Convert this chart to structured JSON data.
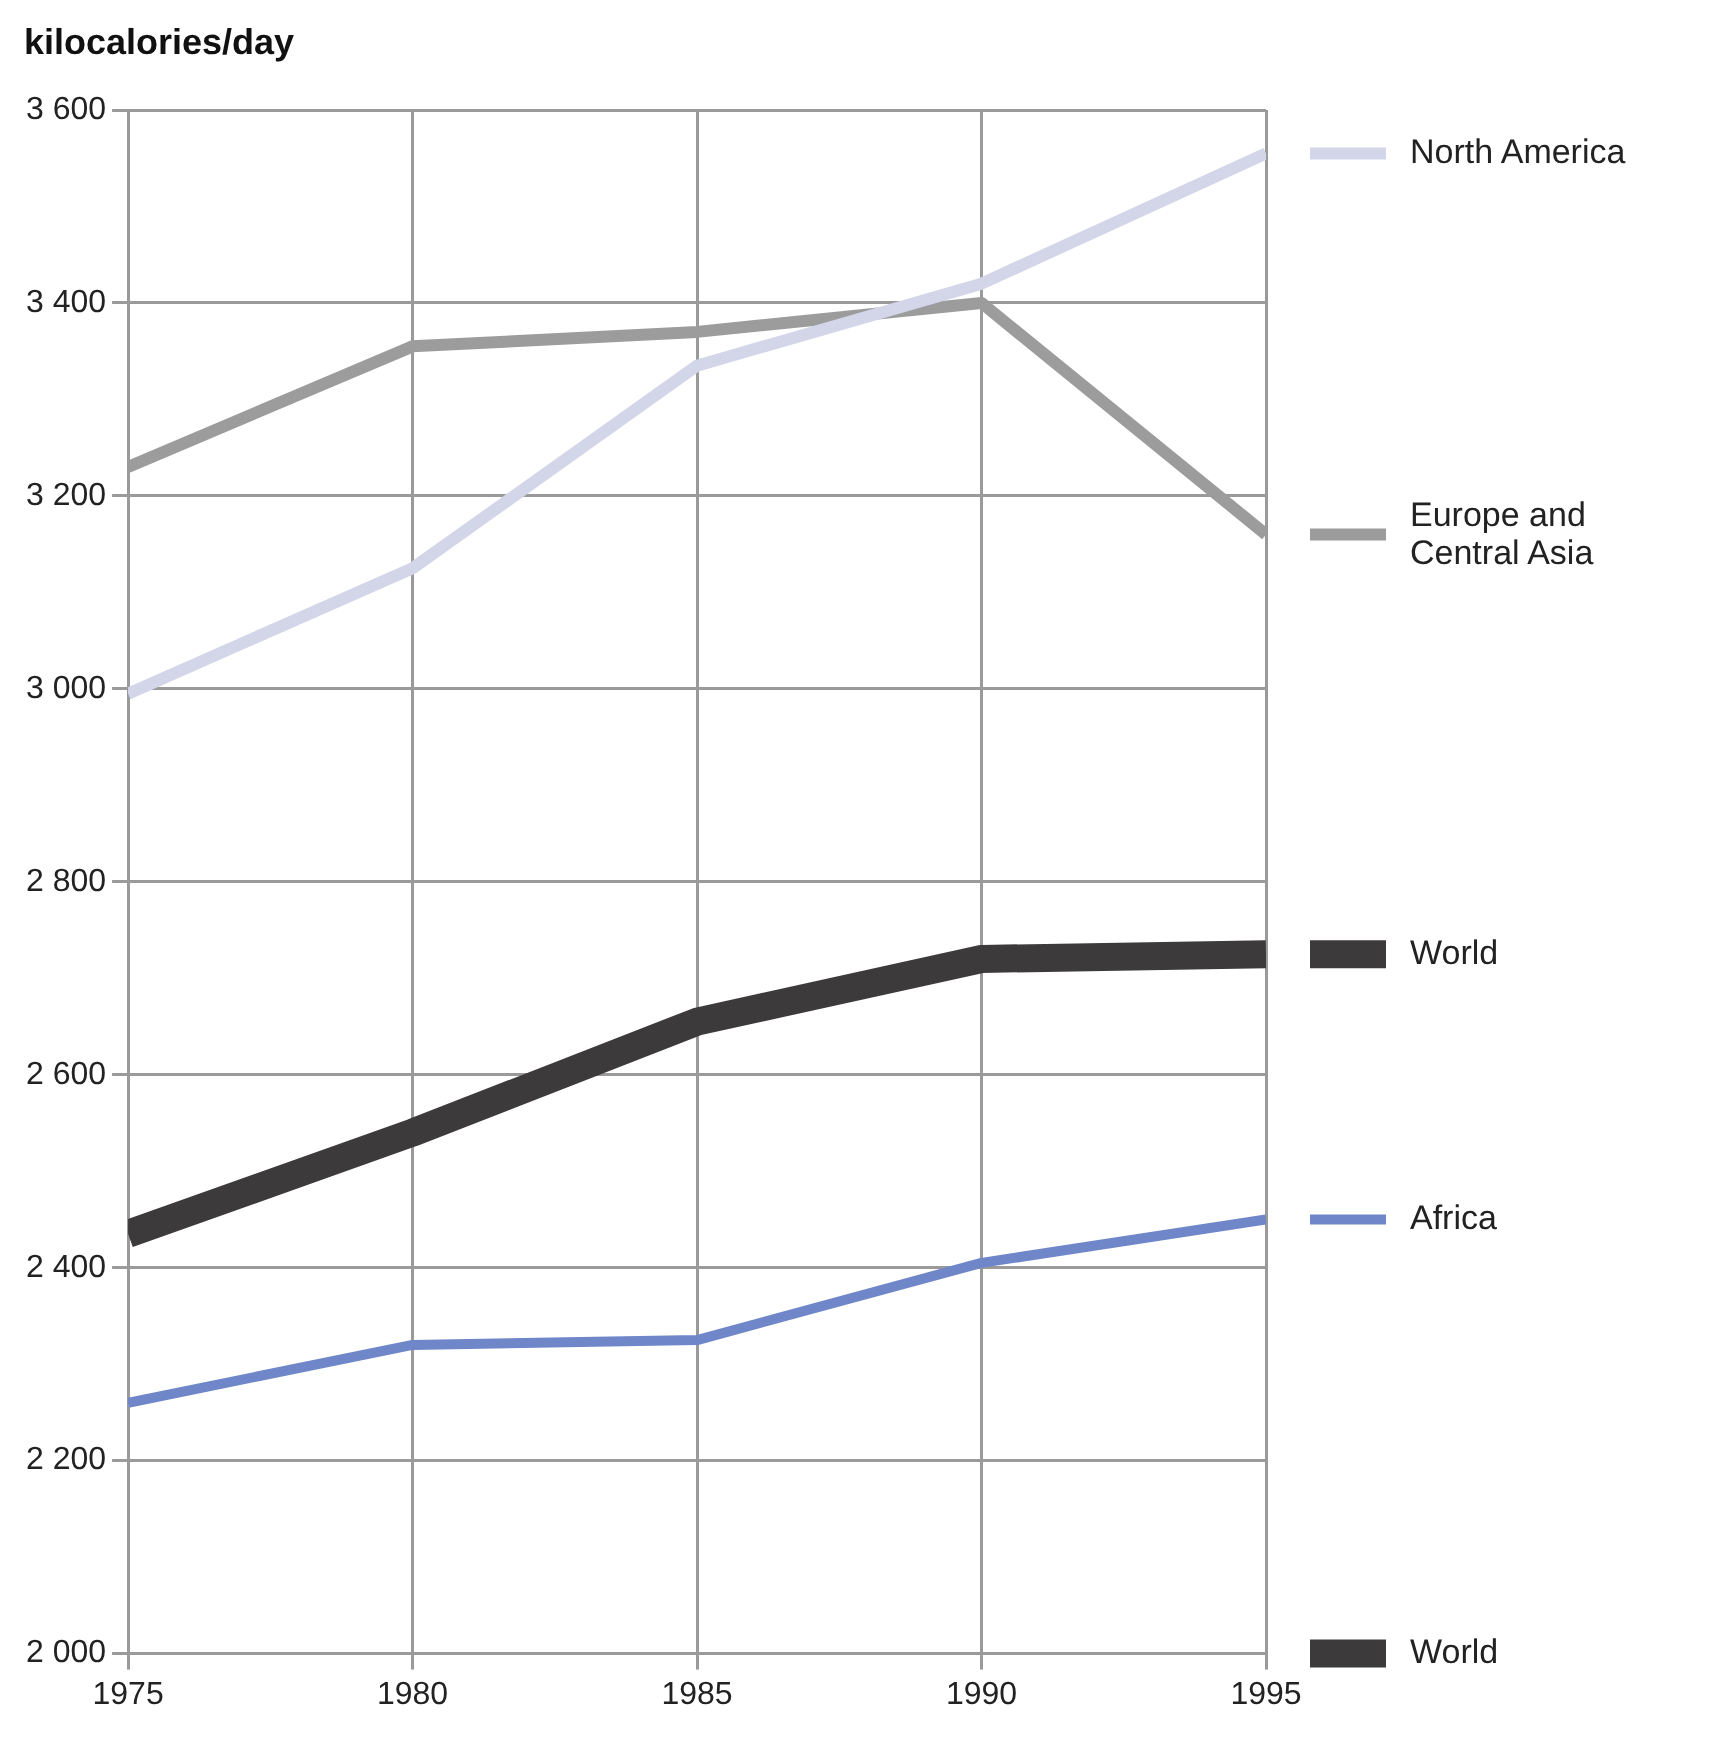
{
  "chart_data": {
    "type": "line",
    "ylabel": "kilocalories/day",
    "x": [
      1975,
      1980,
      1985,
      1990,
      1995
    ],
    "xlim": [
      1975,
      1995
    ],
    "xticks": [
      1975,
      1980,
      1985,
      1990,
      1995
    ],
    "ylim": [
      2000,
      3600
    ],
    "yticks": [
      {
        "value": 2000,
        "label": "2 000"
      },
      {
        "value": 2200,
        "label": "2 200"
      },
      {
        "value": 2400,
        "label": "2 400"
      },
      {
        "value": 2600,
        "label": "2 600"
      },
      {
        "value": 2800,
        "label": "2 800"
      },
      {
        "value": 3000,
        "label": "3 000"
      },
      {
        "value": 3200,
        "label": "3 200"
      },
      {
        "value": 3400,
        "label": "3 400"
      },
      {
        "value": 3600,
        "label": "3 600"
      }
    ],
    "grid": true,
    "legend": "right",
    "marker": "none",
    "line_style": "solid",
    "series": [
      {
        "name": "North America",
        "color": "#d3d5e8",
        "values": [
          2995,
          3125,
          3335,
          3420,
          3555
        ]
      },
      {
        "name": "Europe and Central Asia",
        "color": "#9c9c9c",
        "values": [
          3230,
          3355,
          3370,
          3400,
          3160
        ]
      },
      {
        "name": "World",
        "color": "#3d3a3b",
        "values": [
          2435,
          2540,
          2655,
          2720,
          2725
        ]
      },
      {
        "name": "Africa",
        "color": "#6f87c9",
        "values": [
          2260,
          2320,
          2325,
          2405,
          2450
        ]
      },
      {
        "name": "World",
        "color": "#3d3a3b",
        "values": [
          null,
          null,
          null,
          null,
          null
        ]
      }
    ]
  }
}
